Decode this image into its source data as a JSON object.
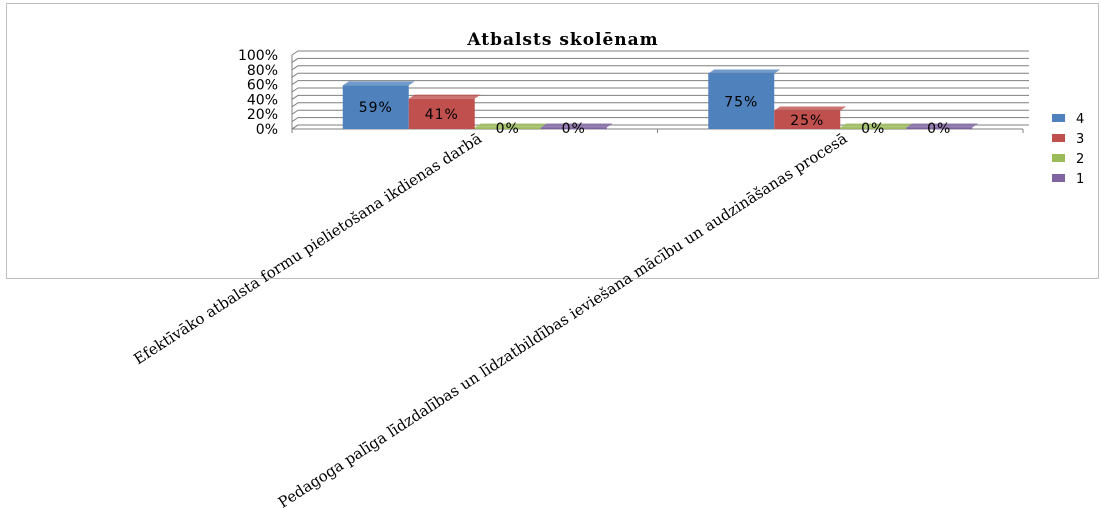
{
  "chart_data": {
    "type": "bar",
    "title": "Atbalsts skolēnam",
    "categories": [
      "Efektīvāko atbalsta formu pielietošana ikdienas darbā",
      "Pedagoga palīga līdzdalības un līdzatbildības ieviešana mācību un audzināšanas procesā"
    ],
    "series": [
      {
        "name": "4",
        "values": [
          59,
          75
        ],
        "labels": [
          "59%",
          "75%"
        ],
        "color": "#4f81bd"
      },
      {
        "name": "3",
        "values": [
          41,
          25
        ],
        "labels": [
          "41%",
          "25%"
        ],
        "color": "#c0504d"
      },
      {
        "name": "2",
        "values": [
          0,
          0
        ],
        "labels": [
          "0%",
          "0%"
        ],
        "color": "#9bbb59"
      },
      {
        "name": "1",
        "values": [
          0,
          0
        ],
        "labels": [
          "0%",
          "0%"
        ],
        "color": "#8064a2"
      }
    ],
    "yticks": [
      "0%",
      "20%",
      "40%",
      "60%",
      "80%",
      "100%"
    ],
    "ylim": [
      0,
      100
    ],
    "ymajor": 20,
    "yminor": 10,
    "grid": true,
    "legend": "right"
  }
}
